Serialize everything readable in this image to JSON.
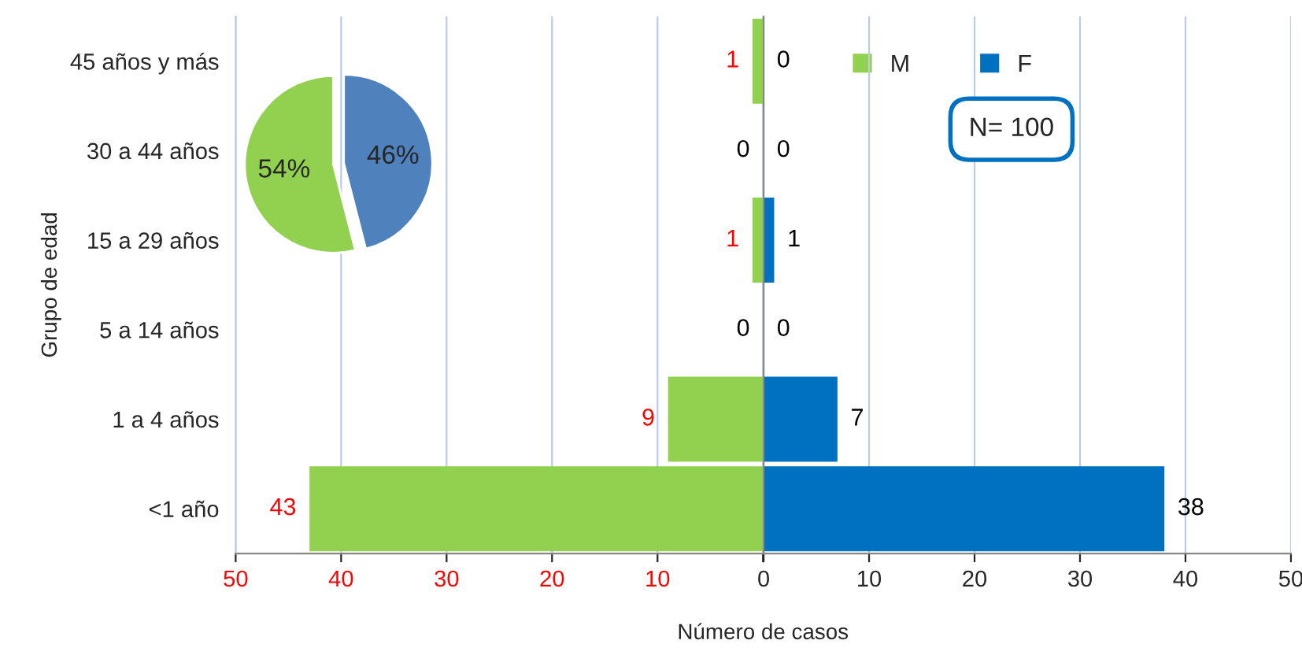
{
  "chart_data": [
    {
      "type": "bar",
      "orientation": "horizontal",
      "xlabel": "Número de casos",
      "ylabel": "Grupo de edad",
      "categories": [
        "45 años y más",
        "30 a 44 años",
        "15 a 29 años",
        "5 a 14 años",
        "1 a 4 años",
        "<1 año"
      ],
      "series": [
        {
          "name": "M",
          "color": "#92d050",
          "values": [
            1,
            0,
            1,
            0,
            9,
            43
          ]
        }
      ],
      "data_labels": true,
      "xlim": [
        50,
        0
      ],
      "xticks": [
        50,
        40,
        30,
        20,
        10,
        {
          "value": 0,
          "label": null
        }
      ],
      "grid": "x",
      "legend": "top right"
    },
    {
      "type": "bar",
      "orientation": "horizontal",
      "series": [
        {
          "name": "F",
          "color": "#0070c0",
          "values": [
            0,
            0,
            1,
            0,
            7,
            38
          ]
        }
      ],
      "data_labels": true,
      "xlim": [
        0,
        50
      ],
      "xticks": [
        0,
        10,
        20,
        30,
        40,
        50
      ],
      "tick_labels": "x",
      "grid": "x",
      "legend": "top right",
      "annotations": [
        "N= 100"
      ]
    },
    {
      "type": "pie",
      "categories": [
        null,
        null
      ],
      "values": [
        46,
        54
      ],
      "colors": [
        "#4f81bd",
        "#92d050"
      ],
      "value_labels": [
        "46%",
        "54%"
      ]
    }
  ]
}
